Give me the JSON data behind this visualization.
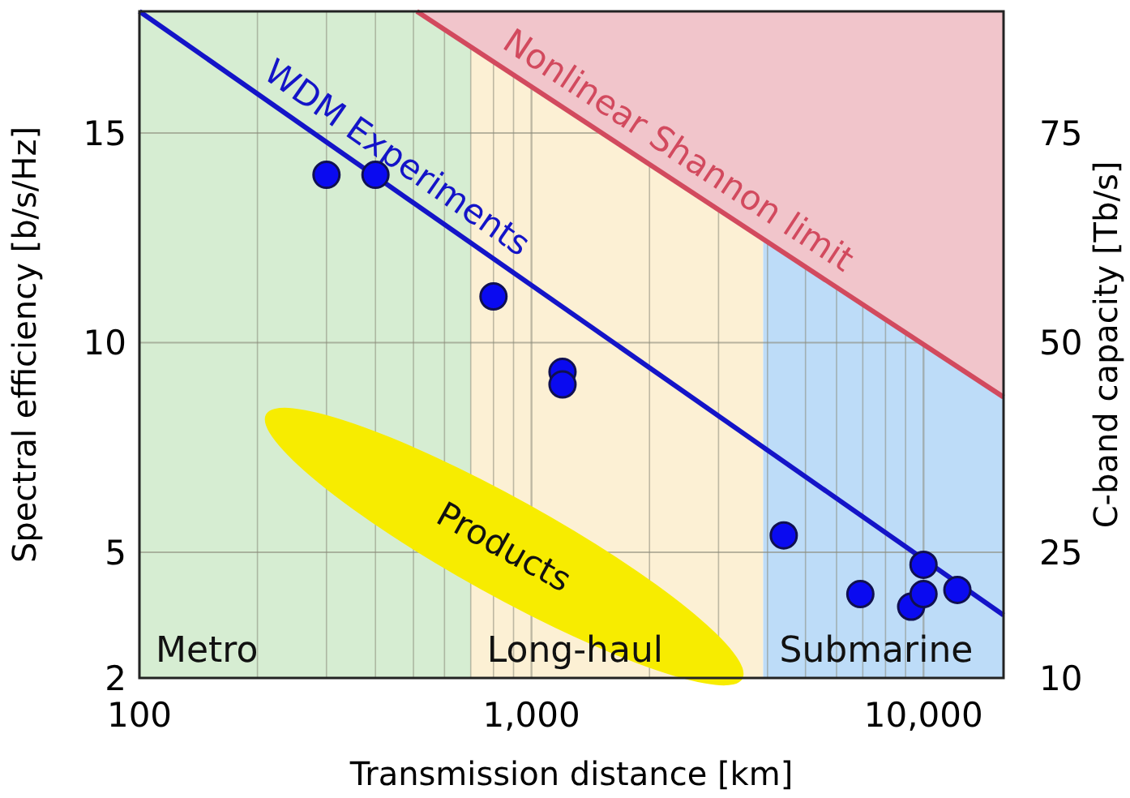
{
  "chart_data": {
    "type": "scatter",
    "xlabel": "Transmission distance [km]",
    "ylabel": "Spectral efficiency [b/s/Hz]",
    "y2label": "C-band capacity [Tb/s]",
    "log": "x",
    "grid": true,
    "xlim": [
      100,
      16000
    ],
    "ylim": [
      2,
      17.9
    ],
    "y2lim": [
      10,
      89.5
    ],
    "xticks": [
      100,
      {
        "value": 200,
        "label": null
      },
      {
        "value": 300,
        "label": null
      },
      {
        "value": 400,
        "label": null
      },
      {
        "value": 500,
        "label": null
      },
      {
        "value": 600,
        "label": null
      },
      {
        "value": 700,
        "label": null
      },
      {
        "value": 800,
        "label": null
      },
      {
        "value": 900,
        "label": null
      },
      {
        "value": 1000,
        "label": "1,000"
      },
      {
        "value": 2000,
        "label": null
      },
      {
        "value": 3000,
        "label": null
      },
      {
        "value": 4000,
        "label": null
      },
      {
        "value": 5000,
        "label": null
      },
      {
        "value": 6000,
        "label": null
      },
      {
        "value": 7000,
        "label": null
      },
      {
        "value": 8000,
        "label": null
      },
      {
        "value": 9000,
        "label": null
      },
      {
        "value": 10000,
        "label": "10,000"
      }
    ],
    "yticks": [
      2,
      5,
      10,
      15
    ],
    "y2ticks": [
      10,
      25,
      50,
      75
    ],
    "bands": [
      {
        "axis": "x",
        "from": 100,
        "to": 700,
        "label": "Metro",
        "color": "#d6edd2"
      },
      {
        "axis": "x",
        "from": 700,
        "to": 3900,
        "label": "Long-haul",
        "color": "#fcf0d4"
      },
      {
        "axis": "x",
        "from": 3900,
        "to": 16000,
        "label": "Submarine",
        "color": "#bddcf8"
      }
    ],
    "annotations": [
      "Products"
    ],
    "series": [
      {
        "type": "line",
        "name": "Nonlinear Shannon limit",
        "color": "#d24a5e",
        "x": [
          510,
          16000
        ],
        "values": [
          17.9,
          8.7
        ],
        "lower": [
          17.9,
          8.7
        ],
        "upper": [
          17.9,
          17.9
        ]
      },
      {
        "type": "line",
        "name": "WDM Experiments",
        "color": "#1414c8",
        "x": [
          100,
          16000
        ],
        "values": [
          17.9,
          3.5
        ]
      },
      {
        "marker": "circle",
        "color": "#0a0af0",
        "x": [
          300,
          400,
          800,
          1200,
          1200,
          4400,
          6900,
          9300,
          10000,
          10000,
          12200
        ],
        "values": [
          14.0,
          14.0,
          11.1,
          9.3,
          9.0,
          5.4,
          4.0,
          3.7,
          4.7,
          4.0,
          4.1
        ]
      }
    ]
  }
}
